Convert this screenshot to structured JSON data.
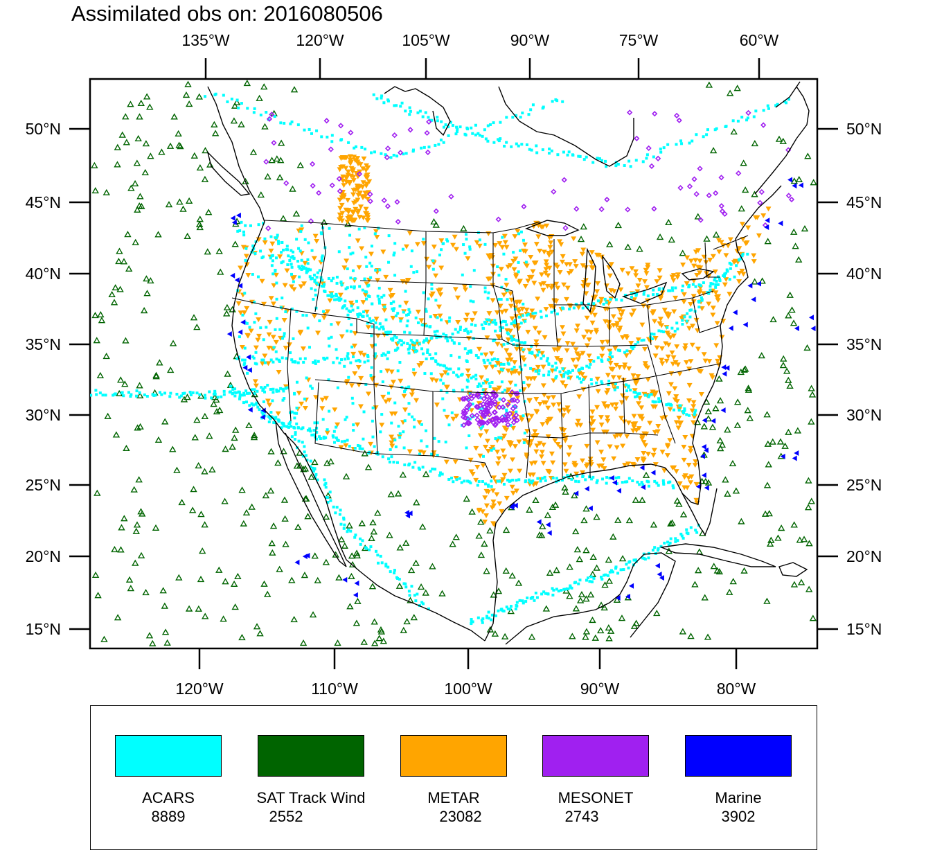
{
  "title": "Assimilated obs on: 2016080506",
  "map": {
    "top_lon_labels": [
      "135°W",
      "120°W",
      "105°W",
      "90°W",
      "75°W",
      "60°W"
    ],
    "bottom_lon_labels": [
      "120°W",
      "110°W",
      "100°W",
      "90°W",
      "80°W"
    ],
    "lat_labels": [
      "50°N",
      "45°N",
      "40°N",
      "35°N",
      "30°N",
      "25°N",
      "20°N",
      "15°N"
    ],
    "colors": {
      "coast": "#000000",
      "background": "#ffffff"
    }
  },
  "legend": {
    "items": [
      {
        "name": "ACARS",
        "count": "8889",
        "color": "#00ffff",
        "marker": "square"
      },
      {
        "name": "SAT Track Wind",
        "count": "2552",
        "color": "#006400",
        "marker": "triangle-up-open"
      },
      {
        "name": "METAR",
        "count": "23082",
        "color": "#ffa500",
        "marker": "triangle-down"
      },
      {
        "name": "MESONET",
        "count": "2743",
        "color": "#a020f0",
        "marker": "diamond-open"
      },
      {
        "name": "Marine",
        "count": "3902",
        "color": "#0000ff",
        "marker": "triangle-left"
      }
    ]
  }
}
